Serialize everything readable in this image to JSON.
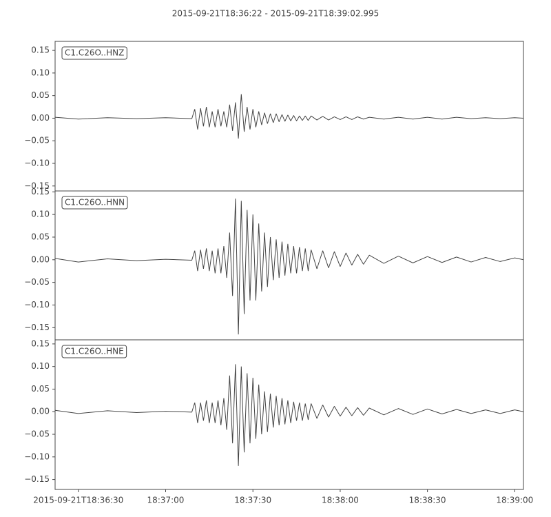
{
  "title": "2015-09-21T18:36:22  -  2015-09-21T18:39:02.995",
  "chart_data": [
    {
      "type": "line",
      "title": "C1.C26O..HNZ",
      "color": "#444444",
      "xlim": [
        "2015-09-21T18:36:22",
        "2015-09-21T18:39:02.995"
      ],
      "ylim": [
        -0.161,
        0.17
      ],
      "yticks": [
        {
          "value": -0.15,
          "label": "−0.15"
        },
        {
          "value": -0.1,
          "label": "−0.10"
        },
        {
          "value": -0.05,
          "label": "−0.05"
        },
        {
          "value": 0,
          "label": "0.00"
        },
        0.05,
        {
          "value": 0.1,
          "label": "0.10"
        },
        0.15
      ],
      "x": [
        "2015-09-21T18:36:22",
        "2015-09-21T18:36:30",
        "2015-09-21T18:36:40",
        "2015-09-21T18:36:50",
        "2015-09-21T18:37:00",
        "2015-09-21T18:37:09",
        "2015-09-21T18:37:10",
        "2015-09-21T18:37:11",
        "2015-09-21T18:37:12",
        "2015-09-21T18:37:13",
        "2015-09-21T18:37:14",
        "2015-09-21T18:37:15",
        "2015-09-21T18:37:16",
        "2015-09-21T18:37:17",
        "2015-09-21T18:37:18",
        "2015-09-21T18:37:19",
        "2015-09-21T18:37:20",
        "2015-09-21T18:37:21",
        "2015-09-21T18:37:22",
        "2015-09-21T18:37:23",
        "2015-09-21T18:37:24",
        "2015-09-21T18:37:25",
        "2015-09-21T18:37:26",
        "2015-09-21T18:37:27",
        "2015-09-21T18:37:28",
        "2015-09-21T18:37:29",
        "2015-09-21T18:37:30",
        "2015-09-21T18:37:31",
        "2015-09-21T18:37:32",
        "2015-09-21T18:37:33",
        "2015-09-21T18:37:34",
        "2015-09-21T18:37:35",
        "2015-09-21T18:37:36",
        "2015-09-21T18:37:37",
        "2015-09-21T18:37:38",
        "2015-09-21T18:37:39",
        "2015-09-21T18:37:40",
        "2015-09-21T18:37:41",
        "2015-09-21T18:37:42",
        "2015-09-21T18:37:43",
        "2015-09-21T18:37:44",
        "2015-09-21T18:37:45",
        "2015-09-21T18:37:46",
        "2015-09-21T18:37:47",
        "2015-09-21T18:37:48",
        "2015-09-21T18:37:49",
        "2015-09-21T18:37:50",
        "2015-09-21T18:37:52",
        "2015-09-21T18:37:54",
        "2015-09-21T18:37:56",
        "2015-09-21T18:37:58",
        "2015-09-21T18:38:00",
        "2015-09-21T18:38:02",
        "2015-09-21T18:38:04",
        "2015-09-21T18:38:06",
        "2015-09-21T18:38:08",
        "2015-09-21T18:38:10",
        "2015-09-21T18:38:15",
        "2015-09-21T18:38:20",
        "2015-09-21T18:38:25",
        "2015-09-21T18:38:30",
        "2015-09-21T18:38:35",
        "2015-09-21T18:38:40",
        "2015-09-21T18:38:45",
        "2015-09-21T18:38:50",
        "2015-09-21T18:38:55",
        "2015-09-21T18:39:00",
        "2015-09-21T18:39:02.995"
      ],
      "values": [
        0.002,
        -0.002,
        0.001,
        -0.001,
        0.001,
        -0.001,
        0.02,
        -0.025,
        0.022,
        -0.018,
        0.025,
        -0.02,
        0.015,
        -0.02,
        0.02,
        -0.018,
        0.015,
        -0.02,
        0.03,
        -0.028,
        0.035,
        -0.045,
        0.053,
        -0.03,
        0.025,
        -0.025,
        0.02,
        -0.02,
        0.015,
        -0.015,
        0.012,
        -0.012,
        0.01,
        -0.01,
        0.01,
        -0.008,
        0.008,
        -0.007,
        0.007,
        -0.006,
        0.006,
        -0.006,
        0.005,
        -0.005,
        0.005,
        -0.005,
        0.005,
        -0.004,
        0.004,
        -0.004,
        0.003,
        -0.003,
        0.003,
        -0.003,
        0.003,
        -0.002,
        0.002,
        -0.002,
        0.002,
        -0.002,
        0.002,
        -0.002,
        0.002,
        -0.001,
        0.001,
        -0.001,
        0.001,
        0.0
      ]
    },
    {
      "type": "line",
      "title": "C1.C26O..HNN",
      "color": "#444444",
      "xlim": [
        "2015-09-21T18:36:22",
        "2015-09-21T18:39:02.995"
      ],
      "ylim": [
        -0.177,
        0.152
      ],
      "yticks": [
        {
          "value": -0.15,
          "label": "−0.15"
        },
        {
          "value": -0.1,
          "label": "−0.10"
        },
        {
          "value": -0.05,
          "label": "−0.05"
        },
        {
          "value": 0,
          "label": "0.00"
        },
        0.05,
        {
          "value": 0.1,
          "label": "0.10"
        },
        0.15
      ],
      "x": [
        "2015-09-21T18:36:22",
        "2015-09-21T18:36:30",
        "2015-09-21T18:36:40",
        "2015-09-21T18:36:50",
        "2015-09-21T18:37:00",
        "2015-09-21T18:37:09",
        "2015-09-21T18:37:10",
        "2015-09-21T18:37:11",
        "2015-09-21T18:37:12",
        "2015-09-21T18:37:13",
        "2015-09-21T18:37:14",
        "2015-09-21T18:37:15",
        "2015-09-21T18:37:16",
        "2015-09-21T18:37:17",
        "2015-09-21T18:37:18",
        "2015-09-21T18:37:19",
        "2015-09-21T18:37:20",
        "2015-09-21T18:37:21",
        "2015-09-21T18:37:22",
        "2015-09-21T18:37:23",
        "2015-09-21T18:37:24",
        "2015-09-21T18:37:25",
        "2015-09-21T18:37:26",
        "2015-09-21T18:37:27",
        "2015-09-21T18:37:28",
        "2015-09-21T18:37:29",
        "2015-09-21T18:37:30",
        "2015-09-21T18:37:31",
        "2015-09-21T18:37:32",
        "2015-09-21T18:37:33",
        "2015-09-21T18:37:34",
        "2015-09-21T18:37:35",
        "2015-09-21T18:37:36",
        "2015-09-21T18:37:37",
        "2015-09-21T18:37:38",
        "2015-09-21T18:37:39",
        "2015-09-21T18:37:40",
        "2015-09-21T18:37:41",
        "2015-09-21T18:37:42",
        "2015-09-21T18:37:43",
        "2015-09-21T18:37:44",
        "2015-09-21T18:37:45",
        "2015-09-21T18:37:46",
        "2015-09-21T18:37:47",
        "2015-09-21T18:37:48",
        "2015-09-21T18:37:49",
        "2015-09-21T18:37:50",
        "2015-09-21T18:37:52",
        "2015-09-21T18:37:54",
        "2015-09-21T18:37:56",
        "2015-09-21T18:37:58",
        "2015-09-21T18:38:00",
        "2015-09-21T18:38:02",
        "2015-09-21T18:38:04",
        "2015-09-21T18:38:06",
        "2015-09-21T18:38:08",
        "2015-09-21T18:38:10",
        "2015-09-21T18:38:15",
        "2015-09-21T18:38:20",
        "2015-09-21T18:38:25",
        "2015-09-21T18:38:30",
        "2015-09-21T18:38:35",
        "2015-09-21T18:38:40",
        "2015-09-21T18:38:45",
        "2015-09-21T18:38:50",
        "2015-09-21T18:38:55",
        "2015-09-21T18:39:00",
        "2015-09-21T18:39:02.995"
      ],
      "values": [
        0.003,
        -0.005,
        0.002,
        -0.002,
        0.001,
        -0.001,
        0.02,
        -0.025,
        0.022,
        -0.02,
        0.025,
        -0.025,
        0.02,
        -0.03,
        0.025,
        -0.03,
        0.03,
        -0.04,
        0.06,
        -0.08,
        0.135,
        -0.165,
        0.13,
        -0.12,
        0.11,
        -0.09,
        0.1,
        -0.09,
        0.08,
        -0.07,
        0.06,
        -0.06,
        0.05,
        -0.045,
        0.045,
        -0.04,
        0.04,
        -0.035,
        0.035,
        -0.03,
        0.03,
        -0.03,
        0.028,
        -0.025,
        0.025,
        -0.025,
        0.022,
        -0.02,
        0.02,
        -0.018,
        0.018,
        -0.015,
        0.015,
        -0.012,
        0.012,
        -0.01,
        0.01,
        -0.008,
        0.008,
        -0.007,
        0.007,
        -0.006,
        0.006,
        -0.005,
        0.005,
        -0.004,
        0.004,
        0.0
      ]
    },
    {
      "type": "line",
      "title": "C1.C26O..HNE",
      "color": "#444444",
      "xlim": [
        "2015-09-21T18:36:22",
        "2015-09-21T18:39:02.995"
      ],
      "ylim": [
        -0.172,
        0.159
      ],
      "yticks": [
        {
          "value": -0.15,
          "label": "−0.15"
        },
        {
          "value": -0.1,
          "label": "−0.10"
        },
        {
          "value": -0.05,
          "label": "−0.05"
        },
        {
          "value": 0,
          "label": "0.00"
        },
        0.05,
        {
          "value": 0.1,
          "label": "0.10"
        },
        0.15
      ],
      "xticks": [
        "2015-09-21T18:36:30",
        {
          "value": "2015-09-21T18:37:00",
          "label": "18:37:00"
        },
        {
          "value": "2015-09-21T18:37:30",
          "label": "18:37:30"
        },
        {
          "value": "2015-09-21T18:38:00",
          "label": "18:38:00"
        },
        {
          "value": "2015-09-21T18:38:30",
          "label": "18:38:30"
        },
        {
          "value": "2015-09-21T18:39:00",
          "label": "18:39:00"
        }
      ],
      "x": [
        "2015-09-21T18:36:22",
        "2015-09-21T18:36:30",
        "2015-09-21T18:36:40",
        "2015-09-21T18:36:50",
        "2015-09-21T18:37:00",
        "2015-09-21T18:37:09",
        "2015-09-21T18:37:10",
        "2015-09-21T18:37:11",
        "2015-09-21T18:37:12",
        "2015-09-21T18:37:13",
        "2015-09-21T18:37:14",
        "2015-09-21T18:37:15",
        "2015-09-21T18:37:16",
        "2015-09-21T18:37:17",
        "2015-09-21T18:37:18",
        "2015-09-21T18:37:19",
        "2015-09-21T18:37:20",
        "2015-09-21T18:37:21",
        "2015-09-21T18:37:22",
        "2015-09-21T18:37:23",
        "2015-09-21T18:37:24",
        "2015-09-21T18:37:25",
        "2015-09-21T18:37:26",
        "2015-09-21T18:37:27",
        "2015-09-21T18:37:28",
        "2015-09-21T18:37:29",
        "2015-09-21T18:37:30",
        "2015-09-21T18:37:31",
        "2015-09-21T18:37:32",
        "2015-09-21T18:37:33",
        "2015-09-21T18:37:34",
        "2015-09-21T18:37:35",
        "2015-09-21T18:37:36",
        "2015-09-21T18:37:37",
        "2015-09-21T18:37:38",
        "2015-09-21T18:37:39",
        "2015-09-21T18:37:40",
        "2015-09-21T18:37:41",
        "2015-09-21T18:37:42",
        "2015-09-21T18:37:43",
        "2015-09-21T18:37:44",
        "2015-09-21T18:37:45",
        "2015-09-21T18:37:46",
        "2015-09-21T18:37:47",
        "2015-09-21T18:37:48",
        "2015-09-21T18:37:49",
        "2015-09-21T18:37:50",
        "2015-09-21T18:37:52",
        "2015-09-21T18:37:54",
        "2015-09-21T18:37:56",
        "2015-09-21T18:37:58",
        "2015-09-21T18:38:00",
        "2015-09-21T18:38:02",
        "2015-09-21T18:38:04",
        "2015-09-21T18:38:06",
        "2015-09-21T18:38:08",
        "2015-09-21T18:38:10",
        "2015-09-21T18:38:15",
        "2015-09-21T18:38:20",
        "2015-09-21T18:38:25",
        "2015-09-21T18:38:30",
        "2015-09-21T18:38:35",
        "2015-09-21T18:38:40",
        "2015-09-21T18:38:45",
        "2015-09-21T18:38:50",
        "2015-09-21T18:38:55",
        "2015-09-21T18:39:00",
        "2015-09-21T18:39:02.995"
      ],
      "values": [
        0.003,
        -0.004,
        0.002,
        -0.002,
        0.001,
        -0.001,
        0.02,
        -0.025,
        0.02,
        -0.02,
        0.025,
        -0.025,
        0.02,
        -0.025,
        0.025,
        -0.03,
        0.03,
        -0.04,
        0.08,
        -0.07,
        0.105,
        -0.12,
        0.1,
        -0.09,
        0.085,
        -0.07,
        0.075,
        -0.06,
        0.06,
        -0.05,
        0.045,
        -0.045,
        0.04,
        -0.035,
        0.035,
        -0.03,
        0.03,
        -0.028,
        0.025,
        -0.025,
        0.022,
        -0.02,
        0.02,
        -0.02,
        0.018,
        -0.018,
        0.018,
        -0.015,
        0.015,
        -0.012,
        0.012,
        -0.01,
        0.01,
        -0.009,
        0.009,
        -0.008,
        0.008,
        -0.007,
        0.007,
        -0.006,
        0.006,
        -0.005,
        0.005,
        -0.004,
        0.004,
        -0.004,
        0.004,
        0.0
      ]
    }
  ]
}
